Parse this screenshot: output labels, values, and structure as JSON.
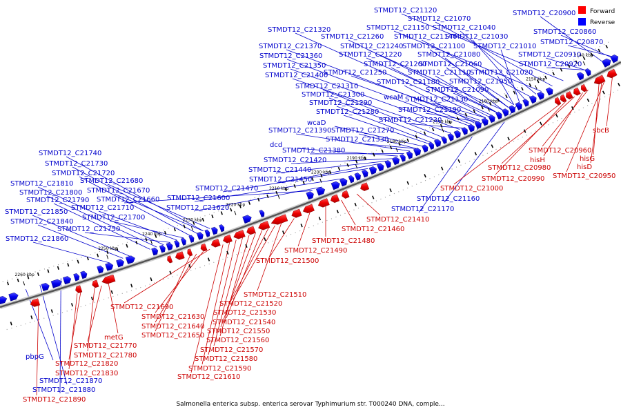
{
  "caption": "Salmonella enterica subsp. enterica serovar Typhimurium str. T000240 DNA, comple...",
  "legend": {
    "forward_label": "Forward",
    "reverse_label": "Reverse",
    "forward_color": "#ff0000",
    "reverse_color": "#0000ff"
  },
  "ticks": [
    "2140 kbp",
    "2150 kbp",
    "2160 kbp",
    "2170 kbp",
    "2180 kbp",
    "2190 kbp",
    "2200 kbp",
    "2210 kbp",
    "2220 kbp",
    "2230 kbp",
    "2240 kbp",
    "2250 kbp",
    "2260 kbp"
  ],
  "reverse_labels": [
    "STMDT12_C21120",
    "STMDT12_C20900",
    "STMDT12_C21070",
    "STMDT12_C21150",
    "STMDT12_C21040",
    "STMDT12_C20860",
    "STMDT12_C21320",
    "STMDT12_C21140",
    "STMDT12_C21260",
    "STMDT12_C21030",
    "STMDT12_C20870",
    "STMDT12_C21370",
    "STMDT12_C21240",
    "STMDT12_C21100",
    "STMDT12_C21010",
    "STMDT12_C21360",
    "STMDT12_C21220",
    "STMDT12_C21080",
    "STMDT12_C20910",
    "STMDT12_C21350",
    "STMDT12_C21200",
    "STMDT12_C21060",
    "STMDT12_C20920",
    "STMDT12_C21400",
    "STMDT12_C21250",
    "STMDT12_C21110",
    "STMDT12_C21020",
    "STMDT12_C21180",
    "STMDT12_C21050",
    "STMDT12_C21310",
    "STMDT12_C21090",
    "STMDT12_C21300",
    "STMDT12_C21290",
    "STMDT12_C21130",
    "wcaM",
    "STMDT12_C21190",
    "STMDT12_C21280",
    "wcaD",
    "STMDT12_C21230",
    "STMDT12_C21390",
    "STMDT12_C21270",
    "STMDT12_C21330",
    "dcd",
    "STMDT12_C21380",
    "STMDT12_C21420",
    "STMDT12_C21440",
    "STMDT12_C21450",
    "STMDT12_C21470",
    "STMDT12_C21600",
    "STMDT12_C21620",
    "STMDT12_C21660",
    "STMDT12_C21740",
    "STMDT12_C21730",
    "STMDT12_C21720",
    "STMDT12_C21680",
    "STMDT12_C21810",
    "STMDT12_C21670",
    "STMDT12_C21800",
    "STMDT12_C21790",
    "STMDT12_C21710",
    "STMDT12_C21850",
    "STMDT12_C21700",
    "STMDT12_C21840",
    "STMDT12_C21750",
    "STMDT12_C21860",
    "STMDT12_C21160",
    "STMDT12_C21170",
    "pbpG",
    "STMDT12_C21870",
    "STMDT12_C21880"
  ],
  "forward_labels": [
    "sbcB",
    "hisG",
    "STMDT12_C20960",
    "hisH",
    "hisD",
    "STMDT12_C20980",
    "STMDT12_C20990",
    "STMDT12_C20950",
    "STMDT12_C21000",
    "STMDT12_C21410",
    "STMDT12_C21460",
    "STMDT12_C21480",
    "STMDT12_C21490",
    "STMDT12_C21500",
    "STMDT12_C21510",
    "STMDT12_C21520",
    "STMDT12_C21530",
    "STMDT12_C21540",
    "STMDT12_C21550",
    "STMDT12_C21560",
    "STMDT12_C21570",
    "STMDT12_C21580",
    "STMDT12_C21590",
    "STMDT12_C21610",
    "STMDT12_C21690",
    "STMDT12_C21630",
    "STMDT12_C21640",
    "STMDT12_C21650",
    "metG",
    "STMDT12_C21770",
    "STMDT12_C21780",
    "STMDT12_C21820",
    "STMDT12_C21830",
    "STMDT12_C21890"
  ]
}
